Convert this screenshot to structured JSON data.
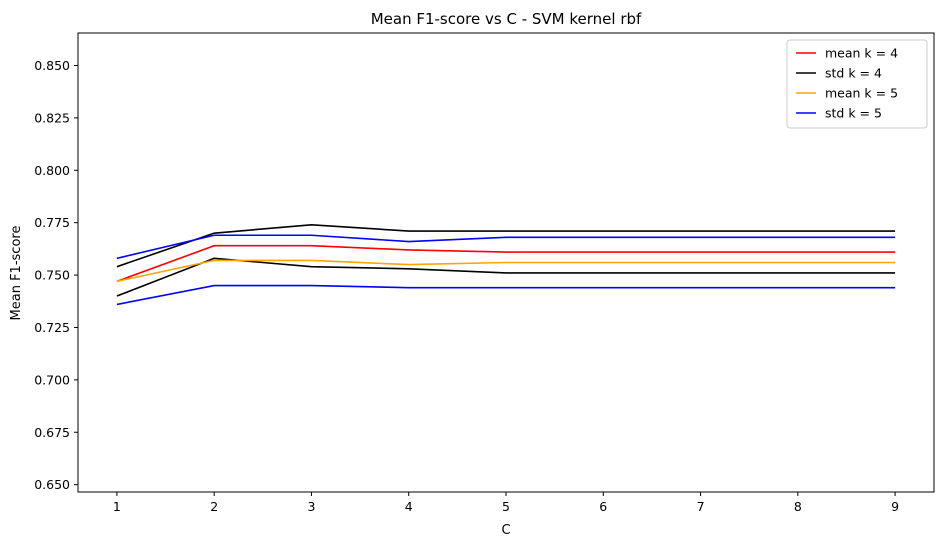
{
  "chart_data": {
    "type": "line",
    "title": "Mean F1-score vs C - SVM kernel rbf",
    "xlabel": "C",
    "ylabel": "Mean F1-score",
    "x": [
      1,
      2,
      3,
      4,
      5,
      6,
      7,
      8,
      9
    ],
    "xticks": [
      "1",
      "2",
      "3",
      "4",
      "5",
      "6",
      "7",
      "8",
      "9"
    ],
    "xlim": [
      0.6,
      9.4
    ],
    "ylim": [
      0.6465,
      0.8655
    ],
    "yticks": [
      "0.650",
      "0.675",
      "0.700",
      "0.725",
      "0.750",
      "0.775",
      "0.800",
      "0.825",
      "0.850"
    ],
    "ytick_values": [
      0.65,
      0.675,
      0.7,
      0.725,
      0.75,
      0.775,
      0.8,
      0.825,
      0.85
    ],
    "grid": false,
    "legend_position": "top-right",
    "series": [
      {
        "name": "mean k = 4",
        "color": "#ff0000",
        "values": [
          0.747,
          0.764,
          0.764,
          0.762,
          0.761,
          0.761,
          0.761,
          0.761,
          0.761
        ]
      },
      {
        "name": "std k = 4",
        "color": "#000000",
        "values": [
          0.754,
          0.77,
          0.774,
          0.771,
          0.771,
          0.771,
          0.771,
          0.771,
          0.771
        ]
      },
      {
        "name": "std k = 4",
        "color": "#000000",
        "values": [
          0.74,
          0.758,
          0.754,
          0.753,
          0.751,
          0.751,
          0.751,
          0.751,
          0.751
        ],
        "hide_in_legend": true
      },
      {
        "name": "mean k = 5",
        "color": "#ffa500",
        "values": [
          0.747,
          0.757,
          0.757,
          0.755,
          0.756,
          0.756,
          0.756,
          0.756,
          0.756
        ]
      },
      {
        "name": "std k = 5",
        "color": "#0000ff",
        "values": [
          0.758,
          0.769,
          0.769,
          0.766,
          0.768,
          0.768,
          0.768,
          0.768,
          0.768
        ]
      },
      {
        "name": "std k = 5",
        "color": "#0000ff",
        "values": [
          0.736,
          0.745,
          0.745,
          0.744,
          0.744,
          0.744,
          0.744,
          0.744,
          0.744
        ],
        "hide_in_legend": true
      }
    ]
  }
}
